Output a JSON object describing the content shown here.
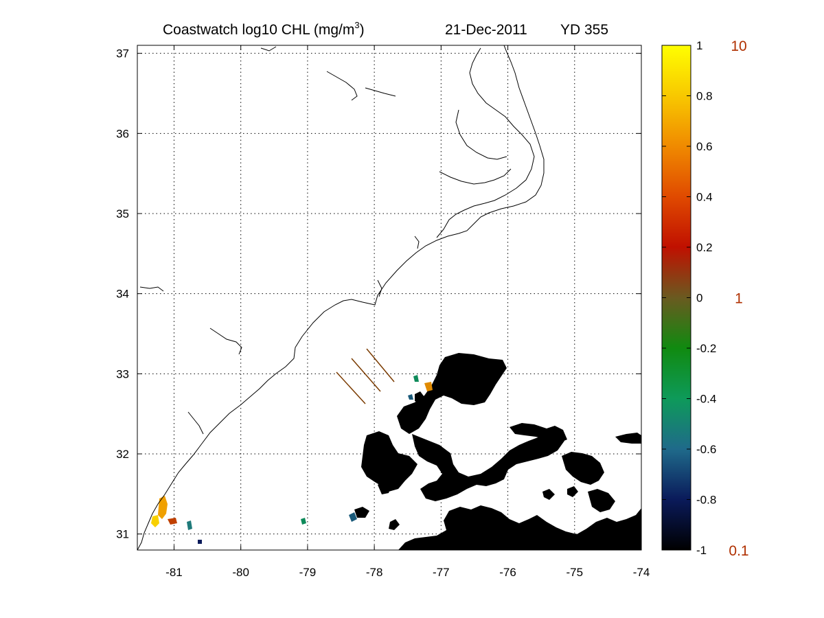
{
  "title": {
    "product": "Coastwatch  log10  CHL (mg/m",
    "unit_exp": "3",
    "close": ")",
    "date": "21-Dec-2011",
    "yearday": "YD 355"
  },
  "map": {
    "lon_range": [
      -81.55,
      -74
    ],
    "lat_range": [
      30.8,
      37.1
    ],
    "lon_ticks": [
      "-81",
      "-80",
      "-79",
      "-78",
      "-77",
      "-76",
      "-75",
      "-74"
    ],
    "lon_tick_values": [
      -81,
      -80,
      -79,
      -78,
      -77,
      -76,
      -75,
      -74
    ],
    "lat_ticks": [
      "31",
      "32",
      "33",
      "34",
      "35",
      "36",
      "37"
    ],
    "lat_tick_values": [
      31,
      32,
      33,
      34,
      35,
      36,
      37
    ],
    "grid": "dotted",
    "land_color": "#ffffff",
    "coastline_color": "#000000",
    "no_data_color": "#000000",
    "track_color": "#7a3a00"
  },
  "colorbar": {
    "log_ticks": [
      "1",
      "0.8",
      "0.6",
      "0.4",
      "0.2",
      "0",
      "-0.2",
      "-0.4",
      "-0.6",
      "-0.8",
      "-1"
    ],
    "log_values": [
      1,
      0.8,
      0.6,
      0.4,
      0.2,
      0,
      -0.2,
      -0.4,
      -0.6,
      -0.8,
      -1
    ],
    "linear_labels": [
      "10",
      "1",
      "0.1"
    ],
    "linear_values": [
      1,
      0,
      -1
    ],
    "linear_label_color": "#b03000",
    "color_stops": [
      "#000000",
      "#0a1a5a",
      "#1f6a8a",
      "#0e9a5a",
      "#108a10",
      "#6a5a20",
      "#c01000",
      "#e04a00",
      "#f08a00",
      "#f8c800",
      "#ffff00"
    ]
  }
}
